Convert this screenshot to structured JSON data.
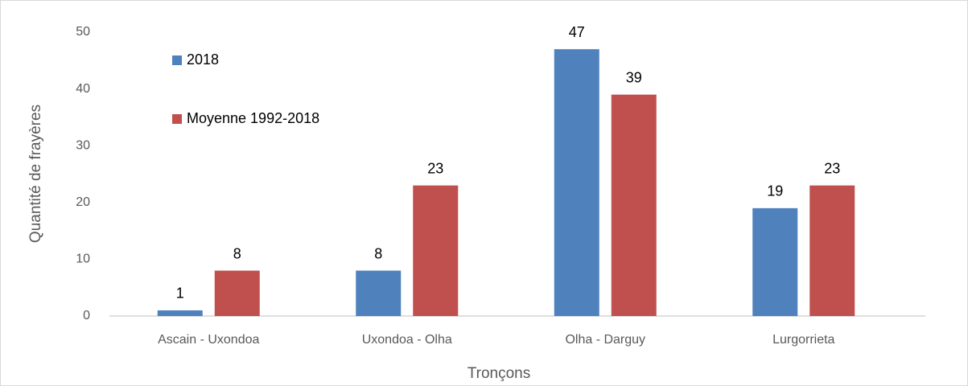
{
  "chart_data": {
    "type": "bar",
    "x_label": "Tronçons",
    "y_label": "Quantité de frayères",
    "categories": [
      "Ascain - Uxondoa",
      "Uxondoa - Olha",
      "Olha - Darguy",
      "Lurgorrieta"
    ],
    "series": [
      {
        "name": "2018",
        "color": "#4f81bd",
        "values": [
          1,
          8,
          47,
          19
        ]
      },
      {
        "name": "Moyenne 1992-2018",
        "color": "#c0504d",
        "values": [
          8,
          23,
          39,
          23
        ]
      }
    ],
    "ylim": [
      0,
      50
    ],
    "yticks": [
      0,
      10,
      20,
      30,
      40,
      50
    ],
    "grid": false,
    "legend": "upper left"
  }
}
